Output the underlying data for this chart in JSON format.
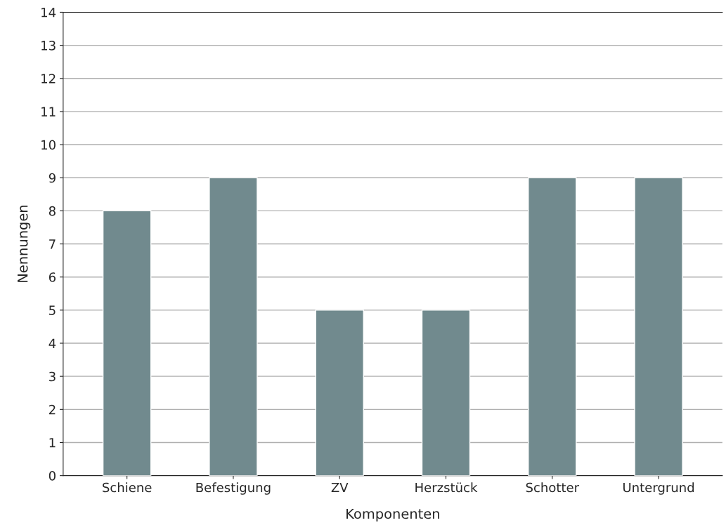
{
  "chart_data": {
    "type": "bar",
    "xlabel": "Komponenten",
    "ylabel": "Nennungen",
    "categories": [
      "Schiene",
      "Befestigung",
      "ZV",
      "Herzstück",
      "Schotter",
      "Untergrund"
    ],
    "values": [
      8,
      9,
      5,
      5,
      9,
      9
    ],
    "color": "#718a8e",
    "ylim": [
      0,
      14
    ],
    "yticks": [
      0,
      1,
      2,
      3,
      4,
      5,
      6,
      7,
      8,
      9,
      10,
      11,
      12,
      13,
      14
    ],
    "grid": "y",
    "legend": false
  }
}
